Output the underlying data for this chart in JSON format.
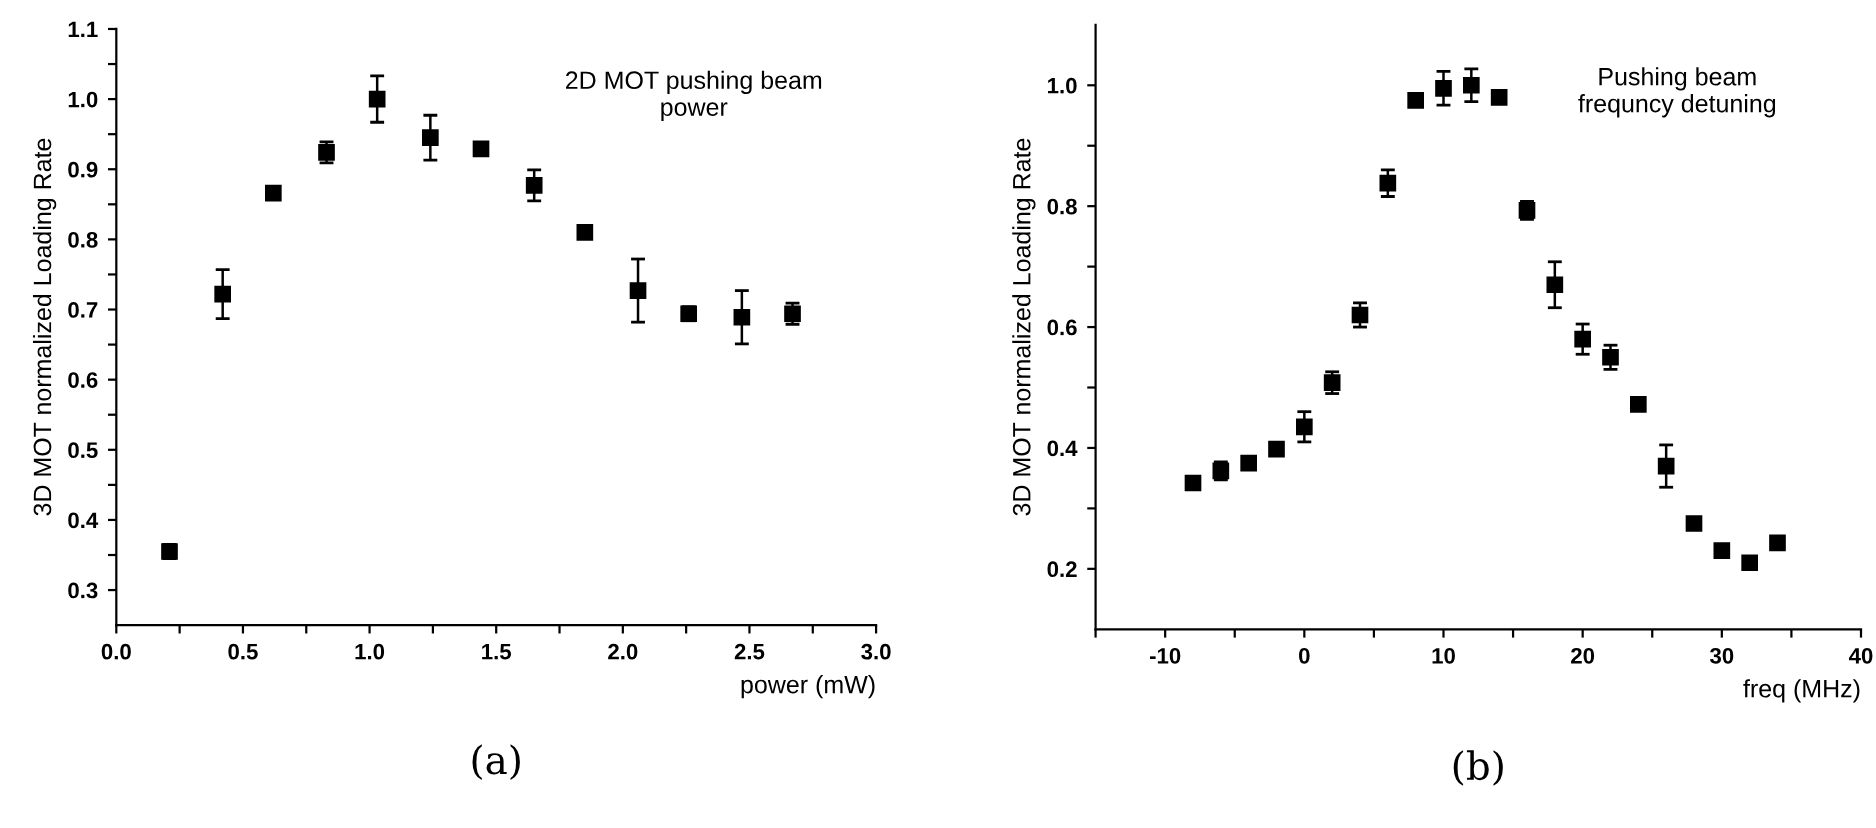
{
  "chart_data": [
    {
      "type": "scatter",
      "title": "2D MOT pushing beam\npower",
      "xlabel": "power (mW)",
      "ylabel": "3D MOT normalized Loading Rate",
      "annotations": [
        "(a)"
      ],
      "marker": "square",
      "grid": false,
      "legend": false,
      "xlim": [
        0.0,
        3.0
      ],
      "ylim": [
        0.25,
        1.1
      ],
      "xticks": [
        {
          "value": 0,
          "label": "0.0"
        },
        {
          "value": 0.25,
          "label": null
        },
        0.5,
        {
          "value": 0.75,
          "label": null
        },
        {
          "value": 1,
          "label": "1.0"
        },
        {
          "value": 1.25,
          "label": null
        },
        1.5,
        {
          "value": 1.75,
          "label": null
        },
        {
          "value": 2,
          "label": "2.0"
        },
        {
          "value": 2.25,
          "label": null
        },
        2.5,
        {
          "value": 2.75,
          "label": null
        },
        {
          "value": 3,
          "label": "3.0"
        }
      ],
      "yticks": [
        0.3,
        {
          "value": 0.35,
          "label": null
        },
        0.4,
        {
          "value": 0.45,
          "label": null
        },
        0.5,
        {
          "value": 0.55,
          "label": null
        },
        0.6,
        {
          "value": 0.65,
          "label": null
        },
        0.7,
        {
          "value": 0.75,
          "label": null
        },
        0.8,
        {
          "value": 0.85,
          "label": null
        },
        0.9,
        {
          "value": 0.95,
          "label": null
        },
        {
          "value": 1,
          "label": "1.0"
        },
        {
          "value": 1.05,
          "label": null
        },
        1.1
      ],
      "series": [
        {
          "color": "#000000",
          "x": [
            0.21,
            0.42,
            0.62,
            0.83,
            1.03,
            1.24,
            1.44,
            1.65,
            1.85,
            2.06,
            2.26,
            2.47,
            2.67
          ],
          "values": [
            0.355,
            0.722,
            0.866,
            0.924,
            1.0,
            0.945,
            0.929,
            0.877,
            0.81,
            0.727,
            0.694,
            0.689,
            0.694
          ],
          "errors": [
            0.01,
            0.035,
            0.008,
            0.015,
            0.033,
            0.032,
            0.005,
            0.022,
            0.005,
            0.045,
            0.01,
            0.038,
            0.015
          ]
        }
      ]
    },
    {
      "type": "scatter",
      "title": "Pushing beam\nfrequncy detuning",
      "xlabel": "freq (MHz)",
      "ylabel": "3D MOT normalized Loading Rate",
      "annotations": [
        "(b)"
      ],
      "marker": "square",
      "grid": false,
      "legend": false,
      "xlim": [
        -15,
        40
      ],
      "ylim": [
        0.1,
        1.1
      ],
      "xticks": [
        {
          "value": -15,
          "label": null
        },
        -10,
        {
          "value": -5,
          "label": null
        },
        0,
        {
          "value": 5,
          "label": null
        },
        10,
        {
          "value": 15,
          "label": null
        },
        20,
        {
          "value": 25,
          "label": null
        },
        30,
        {
          "value": 35,
          "label": null
        },
        40
      ],
      "yticks": [
        0.2,
        {
          "value": 0.3,
          "label": null
        },
        0.4,
        {
          "value": 0.5,
          "label": null
        },
        0.6,
        {
          "value": 0.7,
          "label": null
        },
        0.8,
        {
          "value": 0.9,
          "label": null
        },
        {
          "value": 1,
          "label": "1.0"
        }
      ],
      "series": [
        {
          "color": "#000000",
          "x": [
            -8,
            -6,
            -4,
            -2,
            0,
            2,
            4,
            6,
            8,
            10,
            12,
            14,
            16,
            18,
            20,
            22,
            24,
            26,
            28,
            30,
            32,
            34
          ],
          "values": [
            0.342,
            0.362,
            0.375,
            0.398,
            0.435,
            0.508,
            0.62,
            0.838,
            0.975,
            0.995,
            1.0,
            0.98,
            0.793,
            0.67,
            0.58,
            0.55,
            0.472,
            0.37,
            0.275,
            0.23,
            0.21,
            0.243
          ],
          "errors": [
            null,
            0.015,
            null,
            null,
            0.025,
            0.018,
            0.02,
            0.022,
            null,
            0.028,
            0.027,
            null,
            0.015,
            0.038,
            0.025,
            0.02,
            null,
            0.035,
            null,
            null,
            null,
            null
          ]
        }
      ]
    }
  ]
}
